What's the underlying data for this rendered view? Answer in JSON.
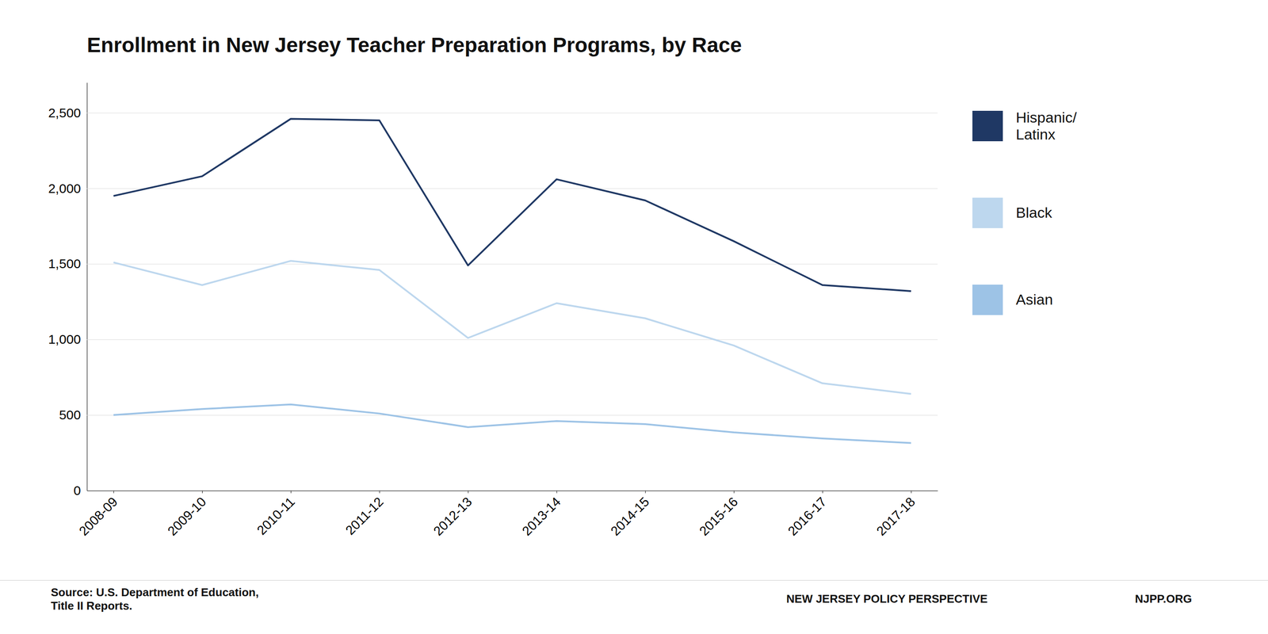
{
  "chart_data": {
    "type": "line",
    "title": "Enrollment in New Jersey Teacher Preparation Programs, by Race",
    "categories": [
      "2008-09",
      "2009-10",
      "2010-11",
      "2011-12",
      "2012-13",
      "2013-14",
      "2014-15",
      "2015-16",
      "2016-17",
      "2017-18"
    ],
    "series": [
      {
        "name": "Hispanic/\nLatinx",
        "color": "#1f3864",
        "values": [
          1950,
          2080,
          2460,
          2450,
          1490,
          2060,
          1920,
          1650,
          1360,
          1320
        ]
      },
      {
        "name": "Black",
        "color": "#bdd7ee",
        "values": [
          1510,
          1360,
          1520,
          1460,
          1010,
          1240,
          1140,
          960,
          710,
          640
        ]
      },
      {
        "name": "Asian",
        "color": "#9dc3e6",
        "values": [
          500,
          540,
          570,
          510,
          420,
          460,
          440,
          385,
          345,
          315
        ]
      }
    ],
    "ylim": [
      0,
      2700
    ],
    "yticks": [
      0,
      500,
      {
        "value": 1000,
        "label": "1,000"
      },
      {
        "value": 1500,
        "label": "1,500"
      },
      {
        "value": 2000,
        "label": "2,000"
      },
      {
        "value": 2500,
        "label": "2,500"
      }
    ],
    "grid": true,
    "legend": "right",
    "annotations": [
      "Source: U.S. Department of Education,\nTitle II Reports.",
      "NEW JERSEY POLICY PERSPECTIVE",
      "NJPP.ORG"
    ]
  }
}
